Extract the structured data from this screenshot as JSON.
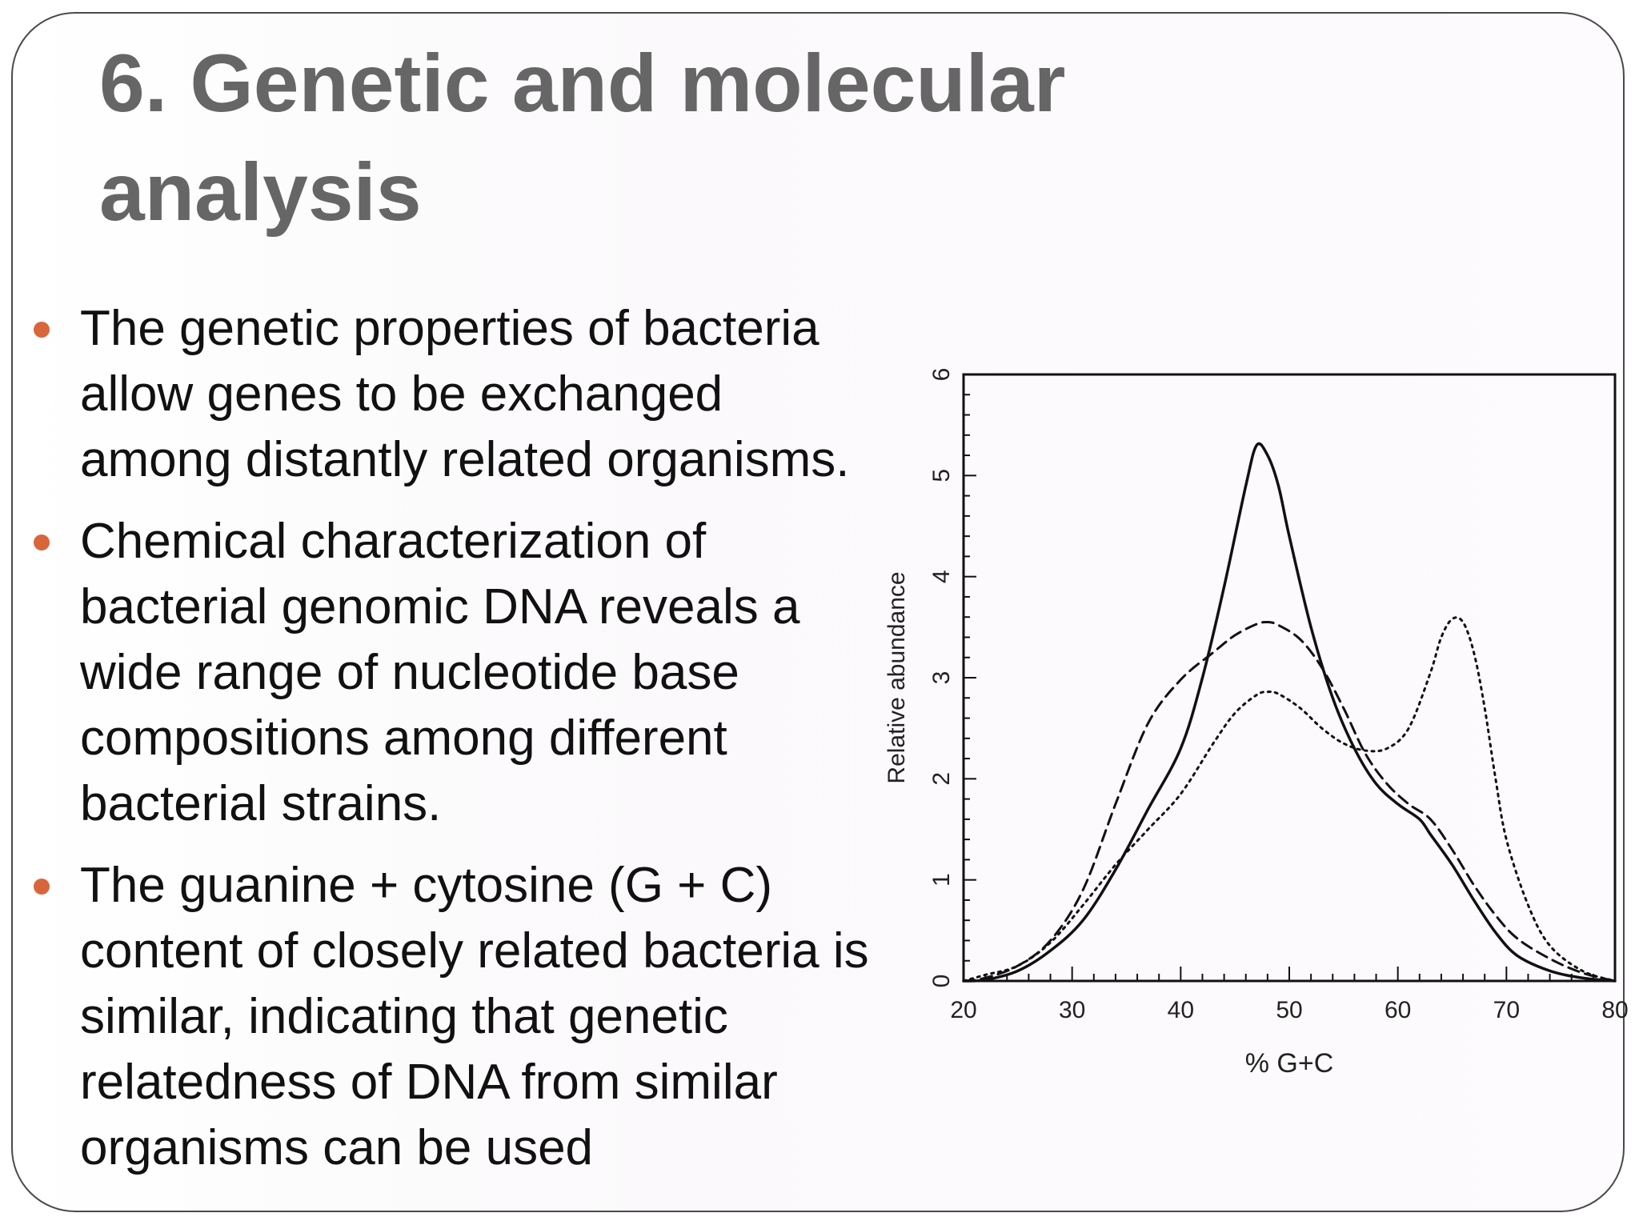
{
  "slide": {
    "title": "6. Genetic and molecular analysis",
    "bullets": [
      "The genetic properties of bacteria allow genes to be exchanged among distantly related organisms.",
      "Chemical characterization of bacterial genomic DNA reveals a wide range of nucleotide base compositions among different bacterial strains.",
      "The guanine + cytosine (G + C) content of closely related bacteria is similar, indicating that genetic relatedness of DNA from similar organisms can be used"
    ],
    "bullet_color": "#d9663a",
    "title_color": "#666666"
  },
  "chart_data": {
    "type": "line",
    "title": "",
    "xlabel": "% G+C",
    "ylabel": "Relative abundance",
    "xlim": [
      20,
      80
    ],
    "ylim": [
      0,
      6
    ],
    "xticks": [
      "20",
      "30",
      "40",
      "50",
      "60",
      "70",
      "80"
    ],
    "yticks": [
      "0",
      "1",
      "2",
      "3",
      "4",
      "5",
      "6"
    ],
    "grid": false,
    "legend": "none",
    "series": [
      {
        "style": "solid",
        "x": [
          20,
          22,
          25,
          28,
          31,
          34,
          37,
          40,
          42,
          44,
          46,
          47,
          48,
          49,
          50,
          52,
          54,
          56,
          58,
          60,
          62,
          63,
          65,
          67,
          69,
          71,
          74,
          77,
          80
        ],
        "y": [
          0,
          0.01,
          0.1,
          0.3,
          0.6,
          1.1,
          1.7,
          2.3,
          3.0,
          3.9,
          4.9,
          5.3,
          5.2,
          4.9,
          4.4,
          3.5,
          2.8,
          2.3,
          1.95,
          1.75,
          1.6,
          1.45,
          1.15,
          0.8,
          0.48,
          0.25,
          0.1,
          0.03,
          0
        ]
      },
      {
        "style": "dashed",
        "x": [
          20,
          22,
          25,
          28,
          31,
          34,
          37,
          40,
          43,
          45,
          47,
          48,
          49,
          51,
          53,
          55,
          57,
          59,
          61,
          63,
          65,
          67,
          69,
          71,
          74,
          77,
          80
        ],
        "y": [
          0,
          0.03,
          0.15,
          0.4,
          0.9,
          1.75,
          2.55,
          2.98,
          3.25,
          3.42,
          3.53,
          3.55,
          3.52,
          3.38,
          3.1,
          2.7,
          2.25,
          1.95,
          1.75,
          1.6,
          1.3,
          0.95,
          0.65,
          0.42,
          0.22,
          0.08,
          0
        ]
      },
      {
        "style": "dotted",
        "x": [
          20,
          22,
          25,
          28,
          31,
          34,
          37,
          40,
          43,
          45,
          47,
          48,
          49,
          51,
          53,
          55,
          57,
          59,
          61,
          63,
          64,
          65,
          66,
          67,
          68,
          69,
          70,
          72,
          74,
          77,
          80
        ],
        "y": [
          0,
          0.06,
          0.15,
          0.38,
          0.75,
          1.15,
          1.5,
          1.85,
          2.35,
          2.65,
          2.83,
          2.86,
          2.84,
          2.7,
          2.5,
          2.35,
          2.28,
          2.3,
          2.5,
          3.05,
          3.4,
          3.58,
          3.55,
          3.25,
          2.7,
          2.0,
          1.4,
          0.75,
          0.35,
          0.1,
          0
        ]
      }
    ]
  }
}
